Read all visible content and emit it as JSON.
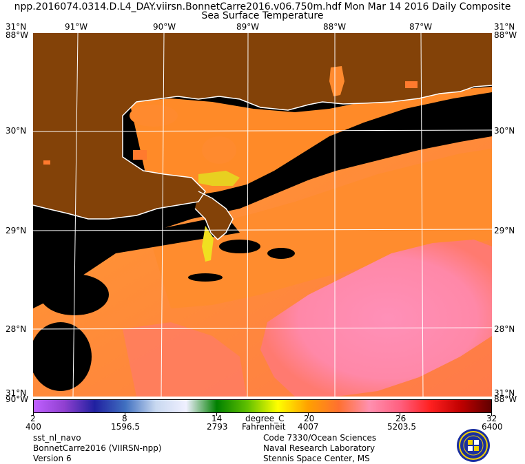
{
  "header": {
    "line1": "npp.2016074.0314.D.L4_DAY.viirsn.BonnetCarre2016.v06.750m.hdf   Mon Mar 14 2016 Daily Composite",
    "line2": "Sea Surface Temperature"
  },
  "map": {
    "lon_labels": [
      "91°W",
      "90°W",
      "89°W",
      "88°W",
      "87°W"
    ],
    "lat_labels": [
      "30°N",
      "29°N",
      "28°N"
    ],
    "corner_labels": {
      "top_left_lat": "31°N",
      "top_left_lon": "88°W",
      "top_right_lat": "31°N",
      "top_right_lon": "88°W",
      "bottom_left_lat": "31°N",
      "bottom_left_lon": "90°W",
      "bottom_right_lat": "31°N",
      "bottom_right_lon": "88°W"
    },
    "colors": {
      "land": "#834208",
      "no_data": "#000000",
      "grid": "#ffffff",
      "coast": "#ffffff"
    }
  },
  "colorbar": {
    "celsius_ticks": [
      "2",
      "8",
      "14",
      "20",
      "26",
      "32"
    ],
    "fahrenheit_ticks": [
      "400",
      "1596.5",
      "2793",
      "4007",
      "5203.5",
      "6400"
    ],
    "unit_celsius": "degree_C",
    "unit_fahrenheit": "Fahrenheit",
    "gradient_stops": [
      "#c060ff",
      "#9040d0",
      "#2020a0",
      "#4070c0",
      "#c8d8f0",
      "#f0f0ff",
      "#008000",
      "#60c000",
      "#ffff00",
      "#ffa000",
      "#ff7030",
      "#ff90b0",
      "#ff6080",
      "#ff2020",
      "#c00000",
      "#600000"
    ]
  },
  "footer": {
    "left": [
      "sst_nl_navo",
      "BonnetCarre2016 (VIIRSN-npp)",
      "Version 6"
    ],
    "right": [
      "Code 7330/Ocean Sciences",
      "Naval Research Laboratory",
      "Stennis Space Center, MS"
    ]
  },
  "logo": {
    "icon": "nrl-seal-icon",
    "colors": [
      "#1a2fa0",
      "#f0d000"
    ]
  }
}
